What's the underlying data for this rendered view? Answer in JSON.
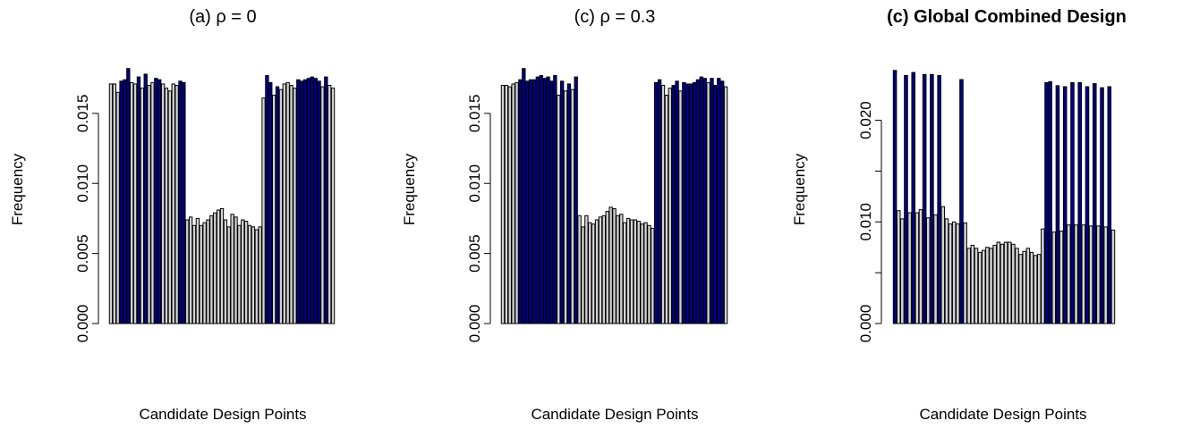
{
  "colors": {
    "highlight": "#00008B",
    "base": "#D3D3D3",
    "outline": "#000000"
  },
  "chart_data": [
    {
      "type": "bar",
      "title": "(a) ρ = 0",
      "title_style": "plain",
      "xlabel": "Candidate Design Points",
      "ylabel": "Frequency",
      "ylim": [
        0,
        0.0185
      ],
      "yticks": [
        0,
        0.005,
        0.01,
        0.015
      ],
      "ytick_labels": [
        "0.000",
        "0.005",
        "0.010",
        "0.015"
      ],
      "values": [
        0.0171,
        0.0171,
        0.0165,
        0.0173,
        0.0174,
        0.0182,
        0.0172,
        0.0171,
        0.0176,
        0.0168,
        0.0178,
        0.017,
        0.0172,
        0.0175,
        0.0174,
        0.0171,
        0.0168,
        0.0166,
        0.0171,
        0.017,
        0.0173,
        0.0172,
        0.0074,
        0.0076,
        0.007,
        0.0075,
        0.007,
        0.0072,
        0.0074,
        0.0077,
        0.0079,
        0.0081,
        0.0082,
        0.0074,
        0.0069,
        0.0078,
        0.0076,
        0.007,
        0.0074,
        0.0073,
        0.007,
        0.0069,
        0.0067,
        0.0069,
        0.0161,
        0.0177,
        0.0172,
        0.0163,
        0.0169,
        0.0167,
        0.0171,
        0.0172,
        0.017,
        0.0168,
        0.0174,
        0.0173,
        0.0174,
        0.0175,
        0.0176,
        0.0175,
        0.0173,
        0.0169,
        0.0176,
        0.017,
        0.0168
      ],
      "highlight": [
        0,
        0,
        0,
        1,
        1,
        1,
        0,
        0,
        1,
        0,
        1,
        0,
        0,
        1,
        1,
        0,
        0,
        0,
        0,
        0,
        1,
        1,
        0,
        0,
        0,
        0,
        0,
        0,
        0,
        0,
        0,
        0,
        0,
        0,
        0,
        0,
        0,
        0,
        0,
        0,
        0,
        0,
        0,
        0,
        0,
        1,
        1,
        0,
        1,
        0,
        0,
        0,
        0,
        0,
        1,
        1,
        1,
        1,
        1,
        1,
        1,
        0,
        1,
        0,
        0
      ]
    },
    {
      "type": "bar",
      "title": "(c) ρ = 0.3",
      "title_style": "plain",
      "xlabel": "Candidate Design Points",
      "ylabel": "Frequency",
      "ylim": [
        0,
        0.0185
      ],
      "yticks": [
        0,
        0.005,
        0.01,
        0.015
      ],
      "ytick_labels": [
        "0.000",
        "0.005",
        "0.010",
        "0.015"
      ],
      "values": [
        0.017,
        0.017,
        0.0169,
        0.0171,
        0.0172,
        0.0174,
        0.0182,
        0.0173,
        0.0174,
        0.0174,
        0.0176,
        0.0177,
        0.0175,
        0.0176,
        0.0173,
        0.0177,
        0.0163,
        0.0173,
        0.0166,
        0.0171,
        0.0167,
        0.0176,
        0.0077,
        0.0069,
        0.0077,
        0.0072,
        0.0071,
        0.0074,
        0.0076,
        0.0077,
        0.008,
        0.0083,
        0.0082,
        0.0077,
        0.0078,
        0.0072,
        0.0075,
        0.0074,
        0.0074,
        0.0073,
        0.0071,
        0.0072,
        0.007,
        0.0068,
        0.0172,
        0.0174,
        0.017,
        0.0163,
        0.0168,
        0.017,
        0.0173,
        0.0166,
        0.0172,
        0.0171,
        0.0171,
        0.0172,
        0.0174,
        0.0176,
        0.0175,
        0.0172,
        0.0175,
        0.017,
        0.0175,
        0.0173,
        0.0169
      ],
      "highlight": [
        0,
        0,
        0,
        0,
        0,
        1,
        1,
        1,
        1,
        1,
        1,
        1,
        1,
        1,
        1,
        1,
        0,
        1,
        0,
        1,
        0,
        1,
        0,
        0,
        0,
        0,
        0,
        0,
        0,
        0,
        0,
        0,
        0,
        0,
        0,
        0,
        0,
        0,
        0,
        0,
        0,
        0,
        0,
        0,
        1,
        1,
        0,
        0,
        0,
        1,
        1,
        0,
        1,
        1,
        1,
        1,
        1,
        1,
        1,
        0,
        1,
        1,
        1,
        1,
        0
      ]
    },
    {
      "type": "bar",
      "title": "(c) Global Combined Design",
      "title_style": "bold",
      "xlabel": "Candidate Design Points",
      "ylabel": "Frequency",
      "ylim": [
        0,
        0.0255
      ],
      "yticks": [
        0,
        0.005,
        0.01,
        0.015,
        0.02
      ],
      "ytick_labels": [
        "0.000",
        "",
        "0.010",
        "",
        "0.020"
      ],
      "values": [
        0.0249,
        0.0111,
        0.0103,
        0.0244,
        0.0109,
        0.0247,
        0.0109,
        0.0112,
        0.0245,
        0.0104,
        0.0245,
        0.0107,
        0.0244,
        0.0115,
        0.0103,
        0.0098,
        0.01,
        0.0098,
        0.024,
        0.0099,
        0.0074,
        0.0077,
        0.0074,
        0.007,
        0.0072,
        0.0075,
        0.0074,
        0.0077,
        0.008,
        0.0078,
        0.008,
        0.008,
        0.0078,
        0.0074,
        0.0068,
        0.0071,
        0.0074,
        0.007,
        0.0067,
        0.0068,
        0.0093,
        0.0237,
        0.0238,
        0.009,
        0.0234,
        0.0091,
        0.0233,
        0.0097,
        0.0237,
        0.0097,
        0.0237,
        0.0097,
        0.0233,
        0.0096,
        0.0236,
        0.0096,
        0.0232,
        0.0095,
        0.0233,
        0.0092
      ],
      "highlight": [
        1,
        0,
        0,
        1,
        0,
        1,
        0,
        0,
        1,
        0,
        1,
        0,
        1,
        0,
        0,
        0,
        0,
        0,
        1,
        0,
        0,
        0,
        0,
        0,
        0,
        0,
        0,
        0,
        0,
        0,
        0,
        0,
        0,
        0,
        0,
        0,
        0,
        0,
        0,
        0,
        0,
        1,
        1,
        0,
        1,
        0,
        1,
        0,
        1,
        0,
        1,
        0,
        1,
        0,
        1,
        0,
        1,
        0,
        1,
        0
      ]
    }
  ]
}
